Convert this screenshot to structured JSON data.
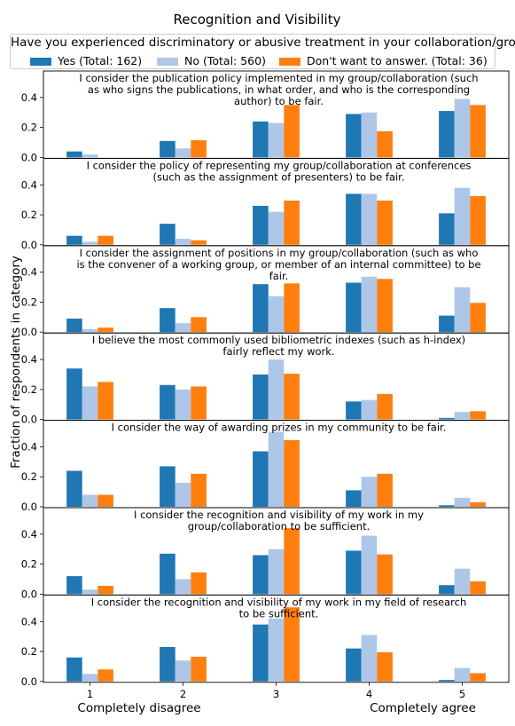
{
  "title": "Recognition and Visibility",
  "legend": {
    "title": "Have you experienced discriminatory or abusive treatment in your collaboration/group?",
    "items": [
      {
        "label": "Yes (Total: 162)",
        "color": "#1f77b4"
      },
      {
        "label": "No (Total: 560)",
        "color": "#aec7e8"
      },
      {
        "label": "Don't want to answer. (Total: 36)",
        "color": "#ff7f0e"
      }
    ]
  },
  "chart_data": {
    "type": "bar",
    "categories": [
      "1",
      "2",
      "3",
      "4",
      "5"
    ],
    "category_labels": {
      "left": "Completely disagree",
      "right": "Completely agree"
    },
    "ylabel": "Fraction of respondents in category",
    "ylim": [
      0,
      0.5
    ],
    "yticks": [
      "0.0",
      "0.2",
      "0.4"
    ],
    "panels": [
      {
        "title_lines": [
          "I consider the publication policy implemented in my group/collaboration (such",
          "as who signs the publications, in what order, and who is the corresponding",
          "author) to be fair."
        ],
        "series": [
          {
            "name": "Yes (Total: 162)",
            "values": [
              0.04,
              0.11,
              0.24,
              0.29,
              0.31
            ]
          },
          {
            "name": "No (Total: 560)",
            "values": [
              0.02,
              0.06,
              0.23,
              0.3,
              0.39
            ]
          },
          {
            "name": "Don't want to answer. (Total: 36)",
            "values": [
              0.0,
              0.115,
              0.35,
              0.175,
              0.35
            ]
          }
        ]
      },
      {
        "title_lines": [
          "I consider the policy of representing my group/collaboration at conferences",
          "(such as the assignment of presenters) to be fair."
        ],
        "series": [
          {
            "name": "Yes (Total: 162)",
            "values": [
              0.06,
              0.14,
              0.26,
              0.34,
              0.21
            ]
          },
          {
            "name": "No (Total: 560)",
            "values": [
              0.02,
              0.04,
              0.22,
              0.34,
              0.38
            ]
          },
          {
            "name": "Don't want to answer. (Total: 36)",
            "values": [
              0.06,
              0.03,
              0.295,
              0.295,
              0.325
            ]
          }
        ]
      },
      {
        "title_lines": [
          "I consider the assignment of positions in my group/collaboration (such as who",
          "is the convener of a working group, or member of an internal committee) to be",
          "fair."
        ],
        "series": [
          {
            "name": "Yes (Total: 162)",
            "values": [
              0.09,
              0.16,
              0.32,
              0.33,
              0.11
            ]
          },
          {
            "name": "No (Total: 560)",
            "values": [
              0.02,
              0.06,
              0.24,
              0.37,
              0.3
            ]
          },
          {
            "name": "Don't want to answer. (Total: 36)",
            "values": [
              0.03,
              0.1,
              0.325,
              0.355,
              0.195
            ]
          }
        ]
      },
      {
        "title_lines": [
          "I believe the most commonly used bibliometric indexes (such as h-index)",
          "fairly reflect my work."
        ],
        "series": [
          {
            "name": "Yes (Total: 162)",
            "values": [
              0.34,
              0.23,
              0.3,
              0.12,
              0.01
            ]
          },
          {
            "name": "No (Total: 560)",
            "values": [
              0.22,
              0.2,
              0.4,
              0.13,
              0.05
            ]
          },
          {
            "name": "Don't want to answer. (Total: 36)",
            "values": [
              0.25,
              0.22,
              0.305,
              0.17,
              0.055
            ]
          }
        ]
      },
      {
        "title_lines": [
          "I consider the way of awarding prizes in my community to be fair."
        ],
        "series": [
          {
            "name": "Yes (Total: 162)",
            "values": [
              0.24,
              0.27,
              0.37,
              0.11,
              0.01
            ]
          },
          {
            "name": "No (Total: 560)",
            "values": [
              0.08,
              0.16,
              0.5,
              0.2,
              0.06
            ]
          },
          {
            "name": "Don't want to answer. (Total: 36)",
            "values": [
              0.08,
              0.22,
              0.445,
              0.22,
              0.03
            ]
          }
        ]
      },
      {
        "title_lines": [
          "I consider the recognition and visibility of my work in my",
          "group/collaboration to be sufficient."
        ],
        "series": [
          {
            "name": "Yes (Total: 162)",
            "values": [
              0.12,
              0.27,
              0.26,
              0.29,
              0.06
            ]
          },
          {
            "name": "No (Total: 560)",
            "values": [
              0.03,
              0.1,
              0.3,
              0.39,
              0.17
            ]
          },
          {
            "name": "Don't want to answer. (Total: 36)",
            "values": [
              0.055,
              0.145,
              0.44,
              0.265,
              0.085
            ]
          }
        ]
      },
      {
        "title_lines": [
          "I consider the recognition and visibility of my work in my field of research",
          "to be sufficient."
        ],
        "series": [
          {
            "name": "Yes (Total: 162)",
            "values": [
              0.16,
              0.23,
              0.38,
              0.22,
              0.01
            ]
          },
          {
            "name": "No (Total: 560)",
            "values": [
              0.05,
              0.14,
              0.42,
              0.31,
              0.09
            ]
          },
          {
            "name": "Don't want to answer. (Total: 36)",
            "values": [
              0.08,
              0.165,
              0.495,
              0.195,
              0.055
            ]
          }
        ]
      }
    ]
  }
}
